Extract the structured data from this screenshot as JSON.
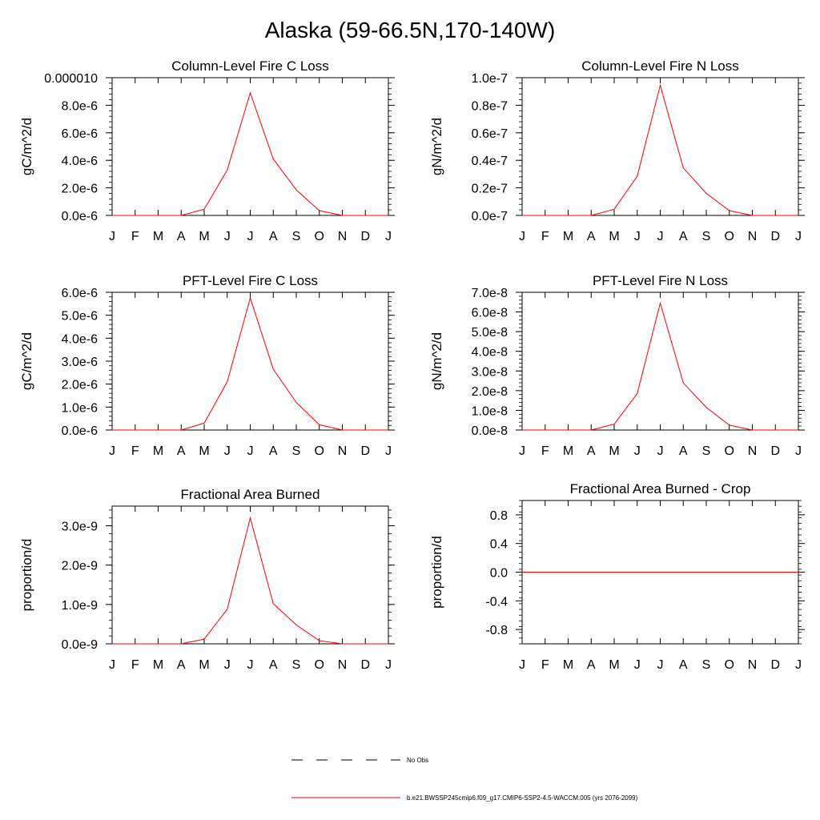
{
  "title": "Alaska (59-66.5N,170-140W)",
  "months": [
    "J",
    "F",
    "M",
    "A",
    "M",
    "J",
    "J",
    "A",
    "S",
    "O",
    "N",
    "D",
    "J"
  ],
  "series_color": "#ff0000",
  "legend": {
    "items": [
      {
        "label": "No Obs",
        "style": "dashed",
        "color": "#000000"
      },
      {
        "label": "b.e21.BWSSP245cmip6.f09_g17.CMIP6-SSP2-4.5-WACCM.005 (yrs 2076-2099)",
        "style": "solid",
        "color": "#ff0000"
      }
    ]
  },
  "chart_data": [
    {
      "type": "line",
      "title": "Column-Level Fire C Loss",
      "ylabel": "gC/m^2/d",
      "ylim": [
        0,
        1e-05
      ],
      "yticks": [
        0,
        2e-06,
        4e-06,
        6e-06,
        8e-06,
        1e-05
      ],
      "yticklabels": [
        "0.0e-6",
        "2.0e-6",
        "4.0e-6",
        "6.0e-6",
        "8.0e-6",
        "0.000010"
      ],
      "x": [
        0,
        1,
        2,
        3,
        4,
        5,
        6,
        7,
        8,
        9,
        10,
        11,
        12
      ],
      "values": [
        0,
        0,
        0,
        0,
        4.5e-07,
        3.3e-06,
        8.9e-06,
        4.1e-06,
        1.85e-06,
        3.5e-07,
        0,
        0,
        0
      ]
    },
    {
      "type": "line",
      "title": "Column-Level Fire N Loss",
      "ylabel": "gN/m^2/d",
      "ylim": [
        0,
        1e-07
      ],
      "yticks": [
        0,
        2e-08,
        4e-08,
        6e-08,
        8e-08,
        1e-07
      ],
      "yticklabels": [
        "0.0e-7",
        "0.2e-7",
        "0.4e-7",
        "0.6e-7",
        "0.8e-7",
        "1.0e-7"
      ],
      "x": [
        0,
        1,
        2,
        3,
        4,
        5,
        6,
        7,
        8,
        9,
        10,
        11,
        12
      ],
      "values": [
        0,
        0,
        0,
        0,
        4.5e-09,
        2.85e-08,
        9.45e-08,
        3.45e-08,
        1.6e-08,
        3.5e-09,
        0,
        0,
        0
      ]
    },
    {
      "type": "line",
      "title": "PFT-Level Fire C Loss",
      "ylabel": "gC/m^2/d",
      "ylim": [
        0,
        6e-06
      ],
      "yticks": [
        0,
        1e-06,
        2e-06,
        3e-06,
        4e-06,
        5e-06,
        6e-06
      ],
      "yticklabels": [
        "0.0e-6",
        "1.0e-6",
        "2.0e-6",
        "3.0e-6",
        "4.0e-6",
        "5.0e-6",
        "6.0e-6"
      ],
      "x": [
        0,
        1,
        2,
        3,
        4,
        5,
        6,
        7,
        8,
        9,
        10,
        11,
        12
      ],
      "values": [
        0,
        0,
        0,
        0,
        3e-07,
        2.1e-06,
        5.75e-06,
        2.65e-06,
        1.2e-06,
        2.3e-07,
        0,
        0,
        0
      ]
    },
    {
      "type": "line",
      "title": "PFT-Level Fire N Loss",
      "ylabel": "gN/m^2/d",
      "ylim": [
        0,
        7e-08
      ],
      "yticks": [
        0,
        1e-08,
        2e-08,
        3e-08,
        4e-08,
        5e-08,
        6e-08,
        7e-08
      ],
      "yticklabels": [
        "0.0e-8",
        "1.0e-8",
        "2.0e-8",
        "3.0e-8",
        "4.0e-8",
        "5.0e-8",
        "6.0e-8",
        "7.0e-8"
      ],
      "x": [
        0,
        1,
        2,
        3,
        4,
        5,
        6,
        7,
        8,
        9,
        10,
        11,
        12
      ],
      "values": [
        0,
        0,
        0,
        0,
        3e-09,
        1.85e-08,
        6.45e-08,
        2.4e-08,
        1.15e-08,
        2.5e-09,
        0,
        0,
        0
      ]
    },
    {
      "type": "line",
      "title": "Fractional Area Burned",
      "ylabel": "proportion/d",
      "ylim": [
        0,
        3.5e-09
      ],
      "yticks": [
        0,
        1e-09,
        2e-09,
        3e-09
      ],
      "yticklabels": [
        "0.0e-9",
        "1.0e-9",
        "2.0e-9",
        "3.0e-9"
      ],
      "x": [
        0,
        1,
        2,
        3,
        4,
        5,
        6,
        7,
        8,
        9,
        10,
        11,
        12
      ],
      "values": [
        0,
        0,
        0,
        0,
        1.2e-10,
        8.8e-10,
        3.2e-09,
        1.02e-09,
        4.8e-10,
        8e-11,
        0,
        0,
        0
      ]
    },
    {
      "type": "line",
      "title": "Fractional Area Burned - Crop",
      "ylabel": "proportion/d",
      "ylim": [
        -1.0,
        1.0
      ],
      "yticks": [
        -0.8,
        -0.4,
        0,
        0.4,
        0.8
      ],
      "yticklabels": [
        "-0.8",
        "-0.4",
        "0.0",
        "0.4",
        "0.8"
      ],
      "x": [
        0,
        1,
        2,
        3,
        4,
        5,
        6,
        7,
        8,
        9,
        10,
        11,
        12
      ],
      "values": [
        0,
        0,
        0,
        0,
        0,
        0,
        0,
        0,
        0,
        0,
        0,
        0,
        0
      ]
    }
  ]
}
